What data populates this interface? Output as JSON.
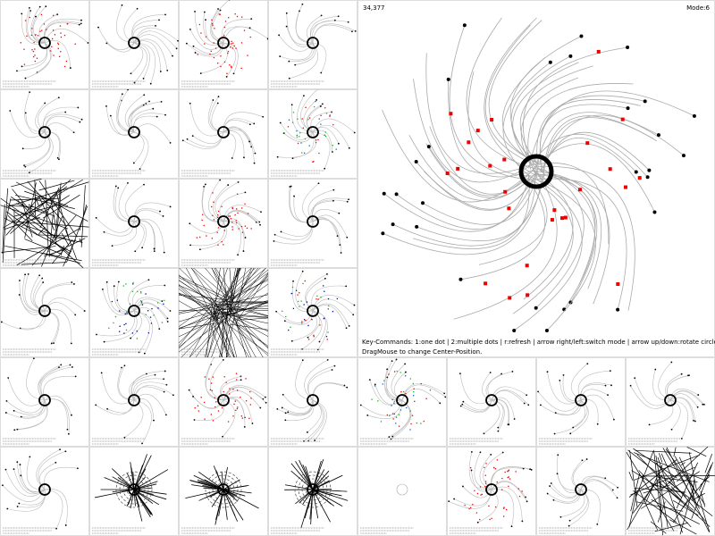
{
  "main_panel": {
    "counter": "34,377",
    "mode": "Mode:6",
    "instructions": [
      "Key-Commands: 1:one dot | 2:multiple dots | r:refresh | arrow right/left:switch mode | arrow up/down:rotate circle",
      "DragMouse to change Center-Position."
    ]
  }
}
